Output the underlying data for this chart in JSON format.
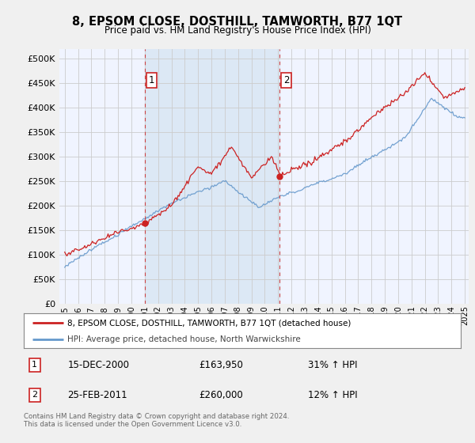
{
  "title": "8, EPSOM CLOSE, DOSTHILL, TAMWORTH, B77 1QT",
  "subtitle": "Price paid vs. HM Land Registry's House Price Index (HPI)",
  "legend_line1": "8, EPSOM CLOSE, DOSTHILL, TAMWORTH, B77 1QT (detached house)",
  "legend_line2": "HPI: Average price, detached house, North Warwickshire",
  "annotation1_date": "15-DEC-2000",
  "annotation1_price": "£163,950",
  "annotation1_hpi": "31% ↑ HPI",
  "annotation2_date": "25-FEB-2011",
  "annotation2_price": "£260,000",
  "annotation2_hpi": "12% ↑ HPI",
  "footer": "Contains HM Land Registry data © Crown copyright and database right 2024.\nThis data is licensed under the Open Government Licence v3.0.",
  "red_line_color": "#cc2222",
  "blue_line_color": "#6699cc",
  "shade_color": "#ddeeff",
  "annotation_box_color": "#cc2222",
  "grid_color": "#cccccc",
  "background_color": "#f5f5f5",
  "plot_bg_color": "#f8f8ff",
  "ylim": [
    0,
    520000
  ],
  "yticks": [
    0,
    50000,
    100000,
    150000,
    200000,
    250000,
    300000,
    350000,
    400000,
    450000,
    500000
  ],
  "t1_year": 2001.0,
  "t1_price": 163950,
  "t2_year": 2011.1,
  "t2_price": 260000
}
